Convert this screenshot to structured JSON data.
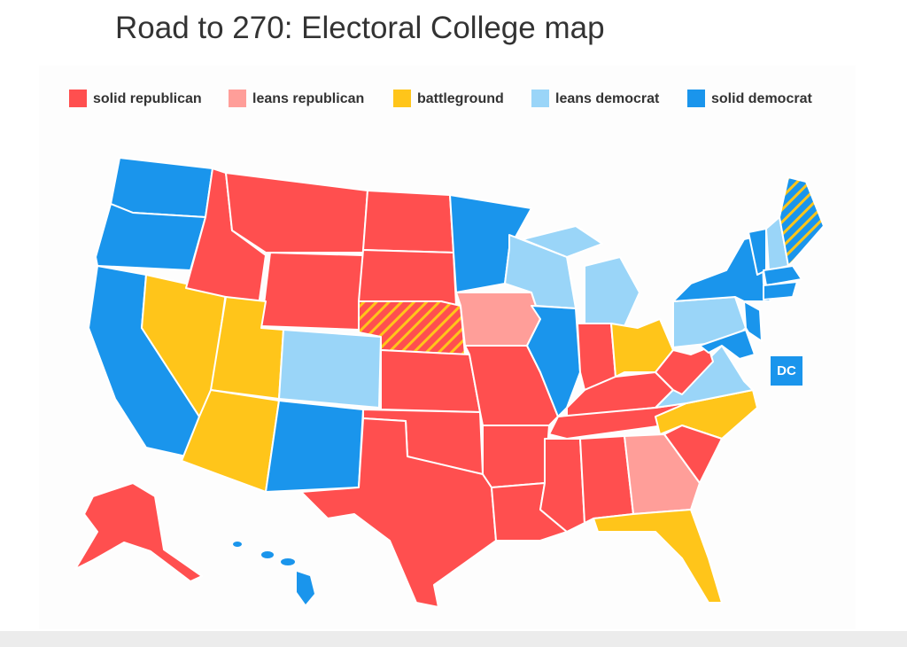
{
  "header": {
    "title": "Road to 270: Electoral College map"
  },
  "legend": [
    {
      "label": "solid republican",
      "color": "#ff4f4f"
    },
    {
      "label": "leans republican",
      "color": "#ff9e99"
    },
    {
      "label": "battleground",
      "color": "#ffc51a"
    },
    {
      "label": "leans democrat",
      "color": "#9ad5f8"
    },
    {
      "label": "solid democrat",
      "color": "#1a95ec"
    }
  ],
  "map": {
    "dc_label": "DC"
  }
}
